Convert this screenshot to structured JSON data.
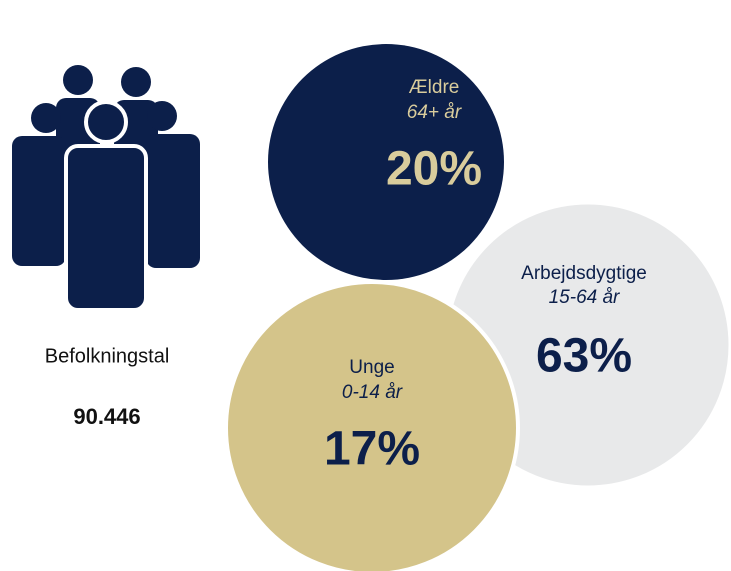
{
  "population": {
    "label": "Befolkningstal",
    "value": "90.446"
  },
  "groups": [
    {
      "name": "Ældre",
      "age": "64+ år",
      "share": "20%"
    },
    {
      "name": "Arbejdsdygtige",
      "age": "15-64 år",
      "share": "63%"
    },
    {
      "name": "Unge",
      "age": "0-14 år",
      "share": "17%"
    }
  ]
}
